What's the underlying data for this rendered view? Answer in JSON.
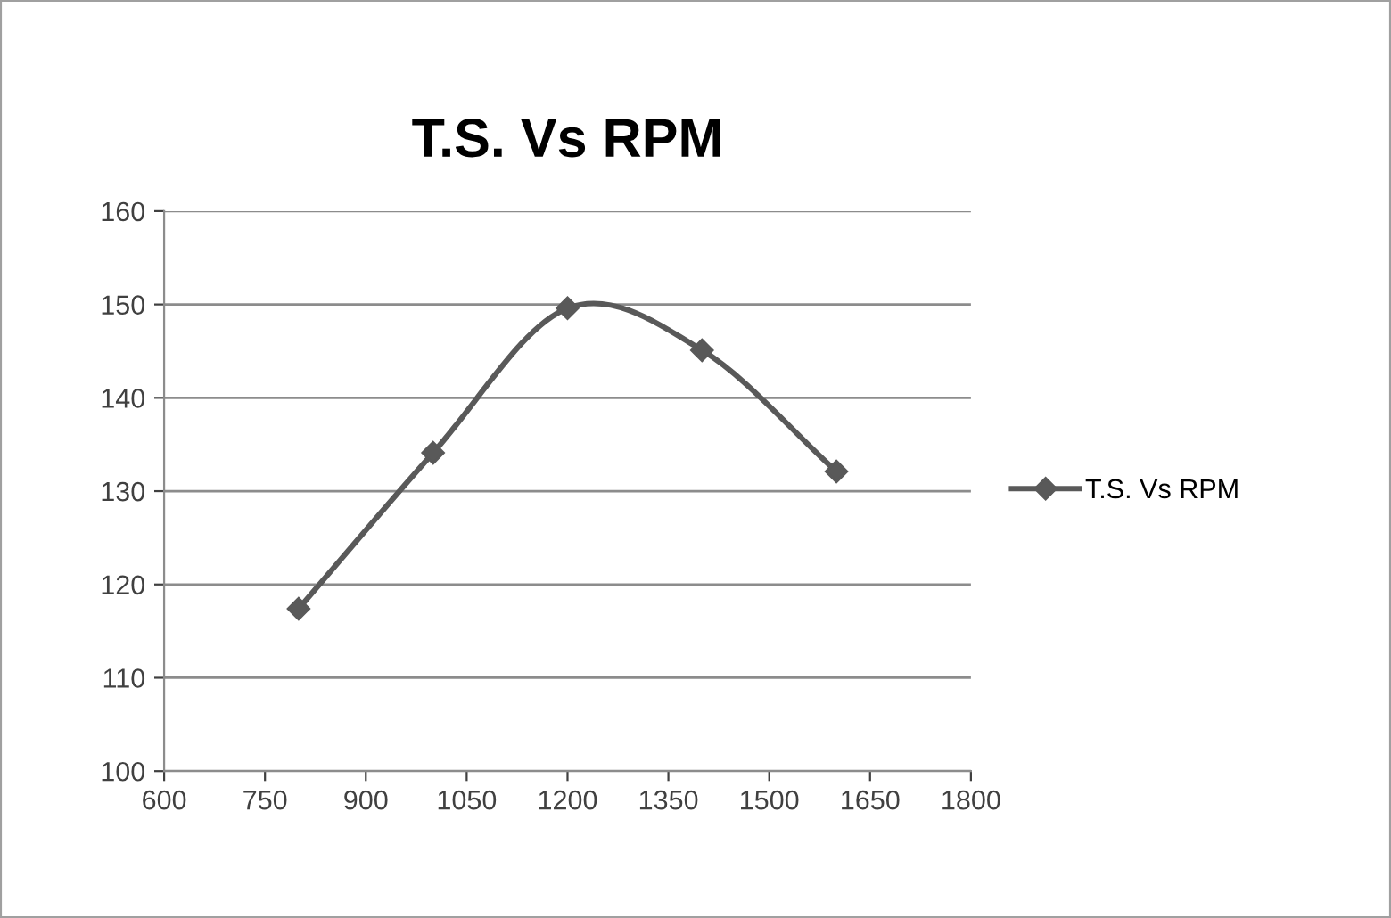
{
  "chart_data": {
    "type": "line",
    "title": "T.S. Vs RPM",
    "x": [
      800,
      1000,
      1200,
      1400,
      1600
    ],
    "series": [
      {
        "name": "T.S. Vs RPM",
        "color": "#595959",
        "values": [
          117.4,
          134.1,
          149.6,
          145.1,
          132.1
        ]
      }
    ],
    "xlim": [
      600,
      1800
    ],
    "xticks": [
      600,
      750,
      900,
      1050,
      1200,
      1350,
      1500,
      1650,
      1800
    ],
    "ylim": [
      100,
      160
    ],
    "yticks": [
      100,
      110,
      120,
      130,
      140,
      150,
      160
    ],
    "grid": "y",
    "legend": "right",
    "marker": "diamond",
    "line_style": "solid"
  }
}
